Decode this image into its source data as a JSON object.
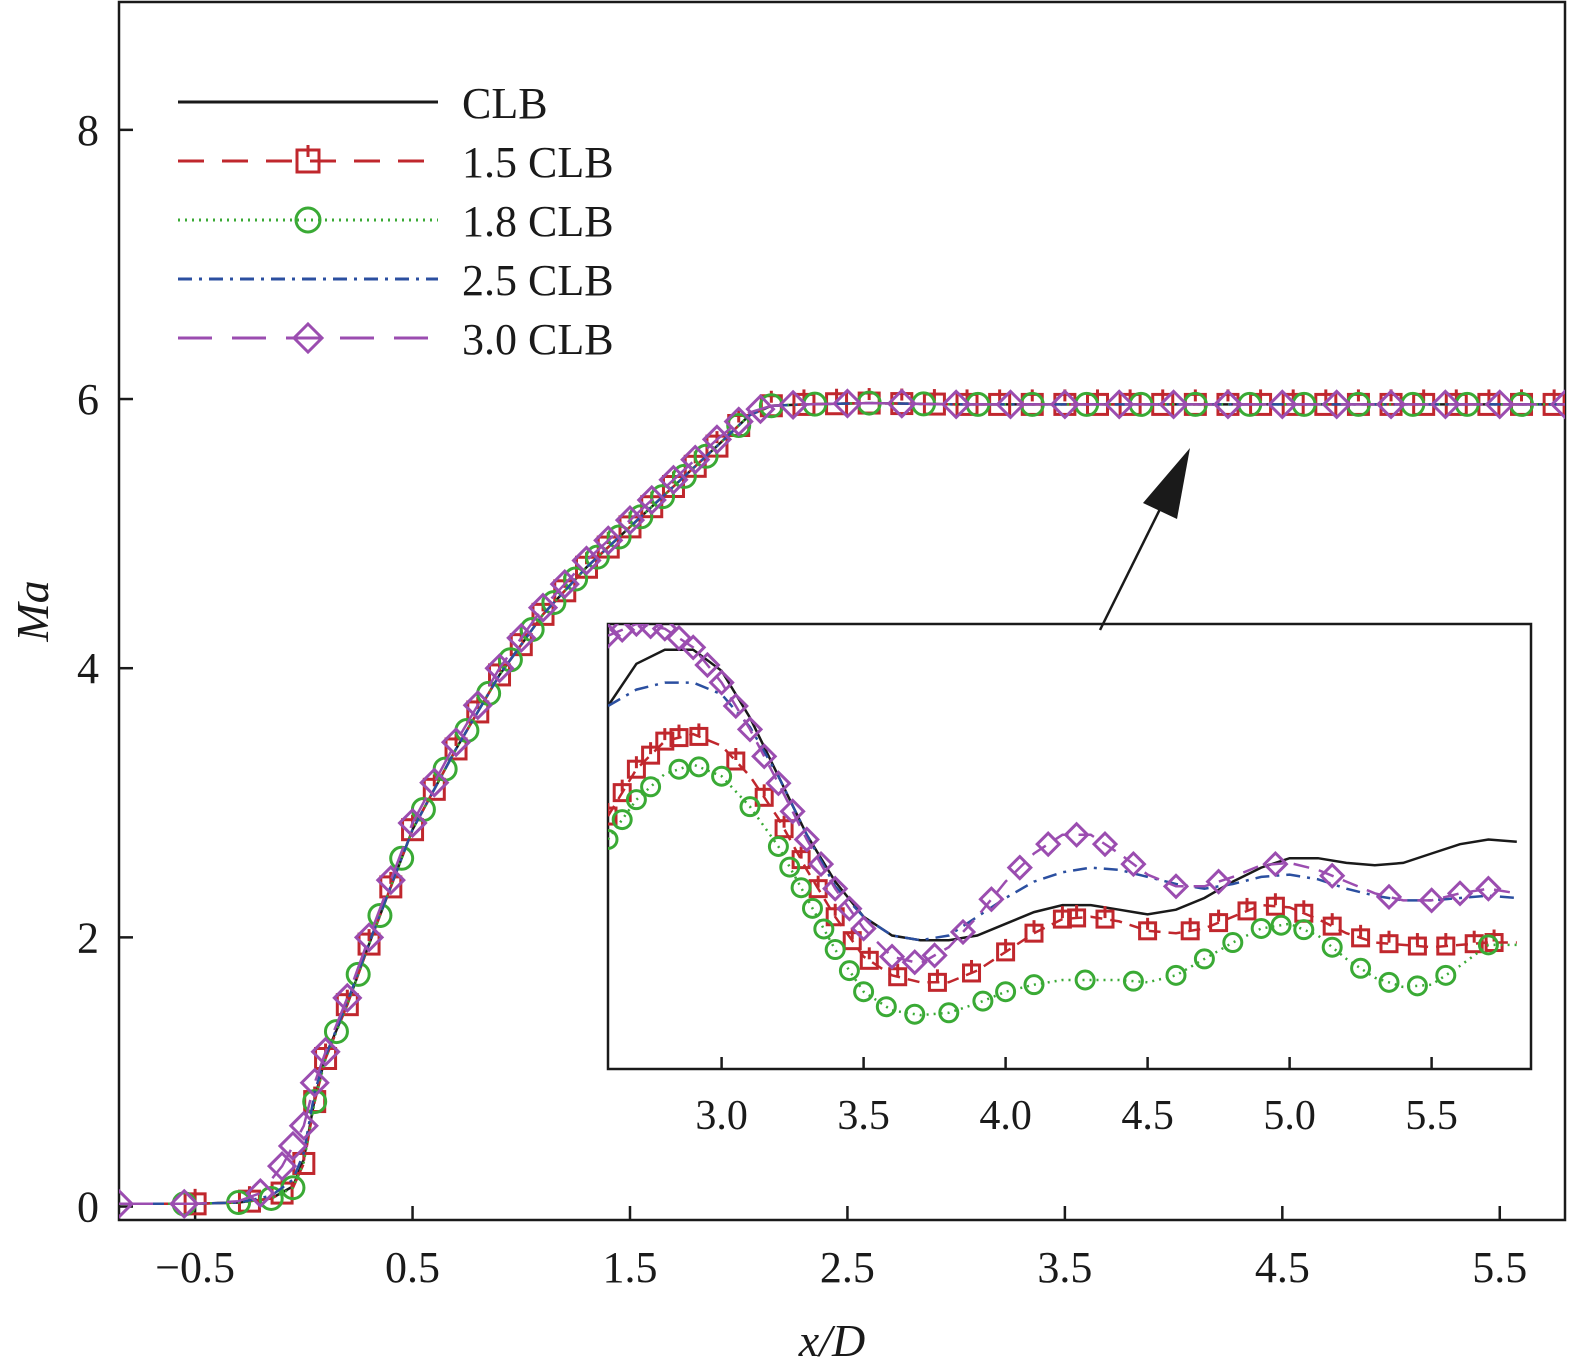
{
  "chart_data": {
    "type": "line",
    "title": "",
    "xlabel": "x/D",
    "ylabel": "Ma",
    "xlim": [
      -0.85,
      5.8
    ],
    "ylim": [
      -0.1,
      8.95
    ],
    "x_ticks": [
      -0.5,
      0.5,
      1.5,
      2.5,
      3.5,
      4.5,
      5.5
    ],
    "x_tick_labels": [
      "−0.5",
      "0.5",
      "1.5",
      "2.5",
      "3.5",
      "4.5",
      "5.5"
    ],
    "y_ticks": [
      0,
      2,
      4,
      6,
      8
    ],
    "y_tick_labels": [
      "0",
      "2",
      "4",
      "6",
      "8"
    ],
    "grid": false,
    "legend_position": "top-left",
    "series": [
      {
        "name": "CLB",
        "color": "#1a1a1a",
        "dash": "solid",
        "marker": "none",
        "x": [
          -0.85,
          -0.5,
          -0.3,
          -0.15,
          -0.05,
          0.0,
          0.05,
          0.1,
          0.2,
          0.3,
          0.5,
          0.7,
          0.9,
          1.1,
          1.3,
          1.5,
          1.7,
          1.9,
          2.05,
          2.15,
          2.3,
          2.6,
          3.0,
          3.5,
          4.0,
          4.5,
          5.0,
          5.5,
          5.8
        ],
        "y": [
          0.02,
          0.02,
          0.03,
          0.06,
          0.15,
          0.35,
          0.8,
          1.12,
          1.5,
          1.95,
          2.8,
          3.4,
          3.95,
          4.4,
          4.75,
          5.05,
          5.35,
          5.65,
          5.88,
          5.95,
          5.96,
          5.97,
          5.96,
          5.96,
          5.96,
          5.96,
          5.96,
          5.96,
          5.96
        ]
      },
      {
        "name": "1.5 CLB",
        "color": "#c0272d",
        "dash": "dashed",
        "marker": "square",
        "x": [
          -0.85,
          -0.5,
          -0.3,
          -0.15,
          -0.05,
          0.0,
          0.05,
          0.1,
          0.2,
          0.3,
          0.5,
          0.7,
          0.9,
          1.1,
          1.3,
          1.5,
          1.7,
          1.9,
          2.05,
          2.15,
          2.3,
          2.6,
          3.0,
          3.5,
          4.0,
          4.5,
          5.0,
          5.5,
          5.8
        ],
        "y": [
          0.02,
          0.02,
          0.03,
          0.06,
          0.14,
          0.32,
          0.78,
          1.1,
          1.5,
          1.95,
          2.8,
          3.4,
          3.95,
          4.4,
          4.75,
          5.05,
          5.35,
          5.65,
          5.88,
          5.95,
          5.96,
          5.97,
          5.96,
          5.96,
          5.96,
          5.96,
          5.96,
          5.96,
          5.96
        ],
        "marker_x": [
          -0.5,
          -0.25,
          -0.1,
          0.0,
          0.05,
          0.1,
          0.2,
          0.3,
          0.4,
          0.5,
          0.6,
          0.7,
          0.8,
          0.9,
          1.0,
          1.1,
          1.2,
          1.3,
          1.4,
          1.5,
          1.6,
          1.7,
          1.8,
          1.9,
          2.0,
          2.15,
          2.3,
          2.45,
          2.6,
          2.75,
          2.9,
          3.05,
          3.2,
          3.35,
          3.5,
          3.65,
          3.8,
          3.95,
          4.1,
          4.25,
          4.4,
          4.55,
          4.7,
          4.85,
          5.0,
          5.15,
          5.3,
          5.45,
          5.6,
          5.75
        ]
      },
      {
        "name": "1.8 CLB",
        "color": "#3aaa35",
        "dash": "dotted",
        "marker": "circle",
        "x": [
          -0.85,
          -0.5,
          -0.3,
          -0.15,
          -0.05,
          0.0,
          0.05,
          0.1,
          0.2,
          0.3,
          0.5,
          0.7,
          0.9,
          1.1,
          1.3,
          1.5,
          1.7,
          1.9,
          2.05,
          2.15,
          2.3,
          2.6,
          3.0,
          3.5,
          4.0,
          4.5,
          5.0,
          5.5,
          5.8
        ],
        "y": [
          0.02,
          0.02,
          0.03,
          0.06,
          0.14,
          0.33,
          0.78,
          1.1,
          1.5,
          1.95,
          2.8,
          3.4,
          3.95,
          4.4,
          4.75,
          5.05,
          5.35,
          5.65,
          5.88,
          5.95,
          5.96,
          5.97,
          5.96,
          5.96,
          5.96,
          5.96,
          5.96,
          5.96,
          5.96
        ],
        "marker_x": [
          -0.55,
          -0.3,
          -0.15,
          -0.05,
          0.05,
          0.15,
          0.25,
          0.35,
          0.45,
          0.55,
          0.65,
          0.75,
          0.85,
          0.95,
          1.05,
          1.15,
          1.25,
          1.35,
          1.45,
          1.55,
          1.65,
          1.75,
          1.85,
          2.0,
          2.15,
          2.35,
          2.6,
          2.85,
          3.1,
          3.35,
          3.6,
          3.85,
          4.1,
          4.35,
          4.6,
          4.85,
          5.1,
          5.35,
          5.6
        ]
      },
      {
        "name": "2.5 CLB",
        "color": "#2b4fa0",
        "dash": "dashdot",
        "marker": "none",
        "x": [
          -0.85,
          -0.5,
          -0.3,
          -0.15,
          -0.05,
          0.0,
          0.05,
          0.1,
          0.2,
          0.3,
          0.5,
          0.7,
          0.9,
          1.1,
          1.3,
          1.5,
          1.7,
          1.9,
          2.05,
          2.15,
          2.3,
          2.6,
          3.0,
          3.5,
          4.0,
          4.5,
          5.0,
          5.5,
          5.8
        ],
        "y": [
          0.02,
          0.02,
          0.03,
          0.08,
          0.2,
          0.4,
          0.85,
          1.12,
          1.52,
          1.96,
          2.8,
          3.4,
          3.95,
          4.4,
          4.75,
          5.05,
          5.35,
          5.65,
          5.88,
          5.95,
          5.96,
          5.97,
          5.96,
          5.96,
          5.96,
          5.96,
          5.96,
          5.96,
          5.96
        ]
      },
      {
        "name": "3.0 CLB",
        "color": "#9b4db0",
        "dash": "longdash",
        "marker": "diamond",
        "x": [
          -0.85,
          -0.5,
          -0.3,
          -0.2,
          -0.1,
          0.0,
          0.05,
          0.1,
          0.2,
          0.3,
          0.5,
          0.7,
          0.9,
          1.1,
          1.3,
          1.5,
          1.7,
          1.9,
          2.05,
          2.15,
          2.3,
          2.6,
          3.0,
          3.5,
          4.0,
          4.5,
          5.0,
          5.5,
          5.8
        ],
        "y": [
          0.02,
          0.02,
          0.04,
          0.1,
          0.3,
          0.6,
          0.92,
          1.15,
          1.55,
          2.0,
          2.85,
          3.45,
          4.0,
          4.45,
          4.8,
          5.1,
          5.4,
          5.7,
          5.9,
          5.95,
          5.96,
          5.97,
          5.96,
          5.96,
          5.96,
          5.96,
          5.96,
          5.96,
          5.96
        ],
        "marker_x": [
          -0.85,
          -0.55,
          -0.2,
          -0.1,
          -0.05,
          0.0,
          0.05,
          0.1,
          0.2,
          0.3,
          0.4,
          0.5,
          0.6,
          0.7,
          0.8,
          0.9,
          1.0,
          1.1,
          1.2,
          1.3,
          1.4,
          1.5,
          1.6,
          1.7,
          1.8,
          1.9,
          2.0,
          2.1,
          2.25,
          2.5,
          2.75,
          3.0,
          3.25,
          3.5,
          3.75,
          4.0,
          4.25,
          4.5,
          4.75,
          5.0,
          5.25,
          5.5,
          5.8
        ]
      }
    ],
    "inset": {
      "xlim": [
        2.6,
        5.85
      ],
      "x_ticks": [
        3.0,
        3.5,
        4.0,
        4.5,
        5.0,
        5.5
      ],
      "x_tick_labels": [
        "3.0",
        "3.5",
        "4.0",
        "4.5",
        "5.0",
        "5.5"
      ],
      "ylim": [
        5.86,
        6.05
      ],
      "series": [
        {
          "name": "CLB",
          "x": [
            2.6,
            2.7,
            2.8,
            2.9,
            3.0,
            3.1,
            3.2,
            3.3,
            3.4,
            3.5,
            3.6,
            3.7,
            3.8,
            3.9,
            4.0,
            4.1,
            4.2,
            4.3,
            4.4,
            4.5,
            4.6,
            4.7,
            4.8,
            4.9,
            5.0,
            5.1,
            5.2,
            5.3,
            5.4,
            5.5,
            5.6,
            5.7,
            5.8
          ],
          "y": [
            6.015,
            6.033,
            6.039,
            6.039,
            6.03,
            6.01,
            5.985,
            5.96,
            5.94,
            5.925,
            5.917,
            5.915,
            5.915,
            5.917,
            5.922,
            5.927,
            5.93,
            5.93,
            5.928,
            5.926,
            5.928,
            5.933,
            5.94,
            5.946,
            5.95,
            5.95,
            5.948,
            5.947,
            5.948,
            5.952,
            5.956,
            5.958,
            5.957
          ]
        },
        {
          "name": "1.5 CLB",
          "x": [
            2.6,
            2.7,
            2.8,
            2.9,
            3.0,
            3.1,
            3.2,
            3.3,
            3.4,
            3.5,
            3.6,
            3.7,
            3.8,
            3.9,
            4.0,
            4.1,
            4.2,
            4.3,
            4.4,
            4.5,
            4.6,
            4.7,
            4.8,
            4.9,
            5.0,
            5.1,
            5.2,
            5.3,
            5.4,
            5.5,
            5.6,
            5.7,
            5.8
          ],
          "y": [
            5.968,
            5.988,
            6.0,
            6.003,
            5.998,
            5.985,
            5.967,
            5.945,
            5.925,
            5.908,
            5.9,
            5.897,
            5.897,
            5.902,
            5.91,
            5.918,
            5.924,
            5.925,
            5.923,
            5.919,
            5.918,
            5.92,
            5.925,
            5.93,
            5.929,
            5.924,
            5.918,
            5.914,
            5.913,
            5.912,
            5.913,
            5.914,
            5.914
          ],
          "marker_x": [
            2.6,
            2.65,
            2.7,
            2.75,
            2.8,
            2.85,
            2.92,
            3.05,
            3.15,
            3.22,
            3.28,
            3.34,
            3.4,
            3.46,
            3.52,
            3.62,
            3.76,
            3.88,
            4.0,
            4.1,
            4.2,
            4.25,
            4.35,
            4.5,
            4.65,
            4.75,
            4.85,
            4.95,
            5.05,
            5.15,
            5.25,
            5.35,
            5.45,
            5.55,
            5.65,
            5.72
          ]
        },
        {
          "name": "1.8 CLB",
          "x": [
            2.6,
            2.7,
            2.8,
            2.9,
            3.0,
            3.1,
            3.2,
            3.3,
            3.4,
            3.5,
            3.6,
            3.7,
            3.8,
            3.9,
            4.0,
            4.1,
            4.2,
            4.3,
            4.4,
            4.5,
            4.6,
            4.7,
            4.8,
            4.9,
            5.0,
            5.1,
            5.2,
            5.3,
            5.4,
            5.5,
            5.6,
            5.7,
            5.8
          ],
          "y": [
            5.958,
            5.975,
            5.986,
            5.99,
            5.985,
            5.972,
            5.955,
            5.933,
            5.911,
            5.893,
            5.885,
            5.883,
            5.884,
            5.888,
            5.893,
            5.896,
            5.898,
            5.898,
            5.898,
            5.897,
            5.9,
            5.907,
            5.914,
            5.92,
            5.922,
            5.917,
            5.907,
            5.899,
            5.895,
            5.896,
            5.904,
            5.913,
            5.913
          ],
          "marker_x": [
            2.6,
            2.65,
            2.7,
            2.75,
            2.85,
            2.92,
            3.0,
            3.1,
            3.2,
            3.24,
            3.28,
            3.32,
            3.36,
            3.4,
            3.45,
            3.5,
            3.58,
            3.68,
            3.8,
            3.92,
            4.0,
            4.1,
            4.28,
            4.45,
            4.6,
            4.7,
            4.8,
            4.9,
            4.97,
            5.05,
            5.15,
            5.25,
            5.35,
            5.45,
            5.55,
            5.7
          ]
        },
        {
          "name": "2.5 CLB",
          "x": [
            2.6,
            2.7,
            2.8,
            2.9,
            3.0,
            3.1,
            3.2,
            3.3,
            3.4,
            3.5,
            3.6,
            3.7,
            3.8,
            3.9,
            4.0,
            4.1,
            4.2,
            4.3,
            4.4,
            4.5,
            4.6,
            4.7,
            4.8,
            4.9,
            5.0,
            5.1,
            5.2,
            5.3,
            5.4,
            5.5,
            5.6,
            5.7,
            5.8
          ],
          "y": [
            6.015,
            6.022,
            6.025,
            6.025,
            6.02,
            6.006,
            5.985,
            5.96,
            5.938,
            5.925,
            5.917,
            5.915,
            5.917,
            5.925,
            5.933,
            5.94,
            5.944,
            5.946,
            5.945,
            5.942,
            5.939,
            5.937,
            5.939,
            5.942,
            5.943,
            5.941,
            5.937,
            5.934,
            5.932,
            5.932,
            5.933,
            5.934,
            5.933
          ]
        },
        {
          "name": "3.0 CLB",
          "x": [
            2.6,
            2.7,
            2.8,
            2.9,
            3.0,
            3.1,
            3.2,
            3.3,
            3.4,
            3.5,
            3.6,
            3.7,
            3.8,
            3.9,
            4.0,
            4.1,
            4.2,
            4.3,
            4.4,
            4.5,
            4.6,
            4.7,
            4.8,
            4.9,
            5.0,
            5.1,
            5.2,
            5.3,
            5.4,
            5.5,
            5.6,
            5.7,
            5.8
          ],
          "y": [
            6.045,
            6.05,
            6.048,
            6.04,
            6.025,
            6.005,
            5.982,
            5.958,
            5.937,
            5.92,
            5.908,
            5.905,
            5.912,
            5.925,
            5.94,
            5.952,
            5.96,
            5.96,
            5.952,
            5.943,
            5.938,
            5.938,
            5.942,
            5.947,
            5.948,
            5.945,
            5.94,
            5.935,
            5.932,
            5.932,
            5.935,
            5.937,
            5.935
          ],
          "marker_x": [
            2.6,
            2.65,
            2.7,
            2.75,
            2.8,
            2.85,
            2.9,
            2.95,
            3.0,
            3.05,
            3.1,
            3.15,
            3.2,
            3.25,
            3.3,
            3.35,
            3.4,
            3.45,
            3.5,
            3.6,
            3.68,
            3.75,
            3.85,
            3.95,
            4.05,
            4.15,
            4.25,
            4.35,
            4.45,
            4.6,
            4.75,
            4.95,
            5.15,
            5.35,
            5.5,
            5.6,
            5.7
          ]
        }
      ]
    }
  }
}
